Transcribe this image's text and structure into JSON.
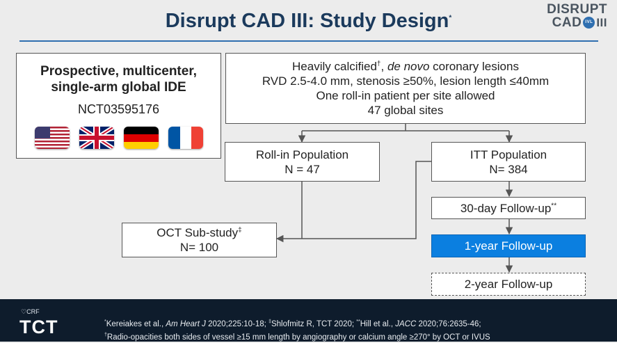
{
  "title": "Disrupt CAD III: Study Design",
  "title_mark": "*",
  "logo": {
    "line1": "DISRUPT",
    "line2": "CAD",
    "badge": "IVL",
    "roman": "III"
  },
  "design_box": {
    "line1": "Prospective, multicenter,",
    "line2": "single-arm global IDE",
    "nct": "NCT03595176",
    "flags": [
      "us-flag-icon",
      "uk-flag-icon",
      "germany-flag-icon",
      "france-flag-icon"
    ]
  },
  "criteria_box": {
    "line1_prefix": "Heavily calcified",
    "line1_mark": "†",
    "line1_italic": "de novo",
    "line1_suffix": " coronary lesions",
    "line2": "RVD 2.5-4.0 mm, stenosis ≥50%, lesion length ≤40mm",
    "line3": "One roll-in patient per site allowed",
    "line4": "47 global sites"
  },
  "rollin_box": {
    "label": "Roll-in Population",
    "n": "N = 47"
  },
  "itt_box": {
    "label": "ITT Population",
    "n": "N= 384"
  },
  "oct_box": {
    "label": "OCT Sub-study",
    "mark": "‡",
    "n": "N= 100"
  },
  "followup_30": {
    "label": "30-day Follow-up",
    "mark": "**"
  },
  "followup_1y": {
    "label": "1-year Follow-up"
  },
  "followup_2y": {
    "label": "2-year Follow-up"
  },
  "footer": {
    "crf": "CRF",
    "tct": "TCT",
    "ref1_mark": "*",
    "ref1a": "Kereiakes et al., ",
    "ref1b": "Am Heart J",
    "ref1c": " 2020;225:10-18; ",
    "ref2_mark": "‡",
    "ref2": "Shlofmitz R, TCT 2020; ",
    "ref3_mark": "**",
    "ref3a": "Hill et al., ",
    "ref3b": "JACC",
    "ref3c": " 2020;76:2635-46;",
    "ref4_mark": "†",
    "ref4": "Radio-opacities both sides of vessel ≥15 mm length by angiography or calcium angle ≥270° by OCT or IVUS"
  },
  "colors": {
    "title": "#1b3a5c",
    "accent": "#2f6fb0",
    "highlight": "#0b7fe0",
    "footer": "#0e1c2c"
  }
}
